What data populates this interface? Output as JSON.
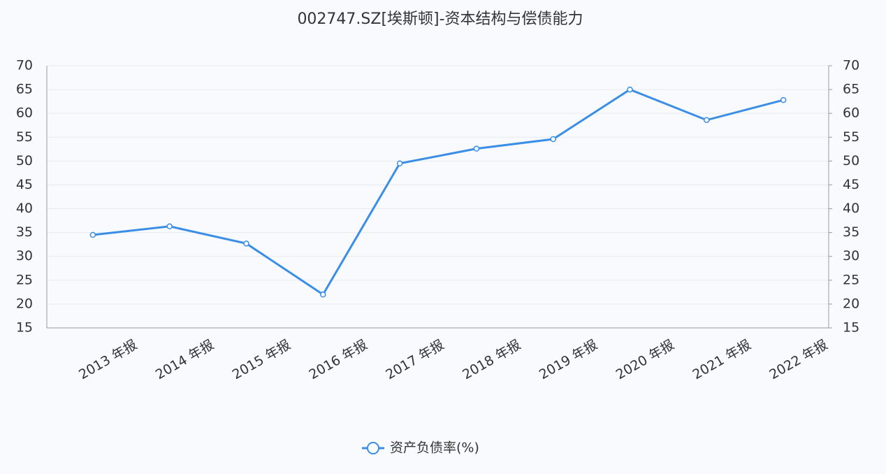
{
  "chart_data": {
    "type": "line",
    "title": "002747.SZ[埃斯顿]-资本结构与偿债能力",
    "categories": [
      "2013 年报",
      "2014 年报",
      "2015 年报",
      "2016 年报",
      "2017 年报",
      "2018 年报",
      "2019 年报",
      "2020 年报",
      "2021 年报",
      "2022 年报"
    ],
    "series": [
      {
        "name": "资产负债率(%)",
        "color": "#3a8ee6",
        "values": [
          34.5,
          36.3,
          32.7,
          22.0,
          49.5,
          52.6,
          54.6,
          65.0,
          58.6,
          62.8
        ]
      }
    ],
    "ylim": [
      15,
      70
    ],
    "yticks": [
      15,
      20,
      25,
      30,
      35,
      40,
      45,
      50,
      55,
      60,
      65,
      70
    ],
    "y2lim": [
      15,
      70
    ],
    "y2ticks": [
      15,
      20,
      25,
      30,
      35,
      40,
      45,
      50,
      55,
      60,
      65,
      70
    ],
    "grid": true,
    "legend": "bottom"
  }
}
